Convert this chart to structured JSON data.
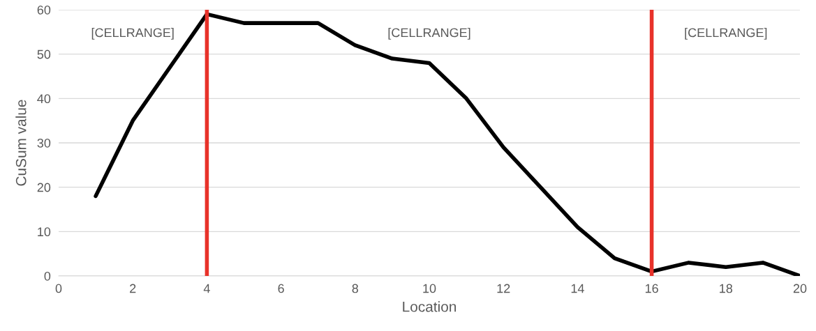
{
  "chart_data": {
    "type": "line",
    "xlabel": "Location",
    "ylabel": "CuSum value",
    "x": [
      1,
      2,
      3,
      4,
      5,
      6,
      7,
      8,
      9,
      10,
      11,
      12,
      13,
      14,
      15,
      16,
      17,
      18,
      19,
      20
    ],
    "series": [
      {
        "color": "#000000",
        "values": [
          18,
          35,
          47,
          59,
          57,
          57,
          57,
          52,
          49,
          48,
          40,
          29,
          20,
          11,
          4,
          1,
          3,
          2,
          3,
          0
        ]
      }
    ],
    "xlim": [
      0,
      20
    ],
    "xticks": [
      0,
      2,
      4,
      6,
      8,
      10,
      12,
      14,
      16,
      18,
      20
    ],
    "ylim": [
      0,
      60
    ],
    "yticks": [
      0,
      10,
      20,
      30,
      40,
      50,
      60
    ],
    "grid": "y",
    "legend": false,
    "marker": "none",
    "line_style": "solid",
    "ref_lines": [
      {
        "axis": "x",
        "value": 4,
        "color": "#e8322a"
      },
      {
        "axis": "x",
        "value": 16,
        "color": "#e8322a"
      }
    ],
    "annotations": [
      "[CELLRANGE]",
      "[CELLRANGE]",
      "[CELLRANGE]"
    ]
  }
}
